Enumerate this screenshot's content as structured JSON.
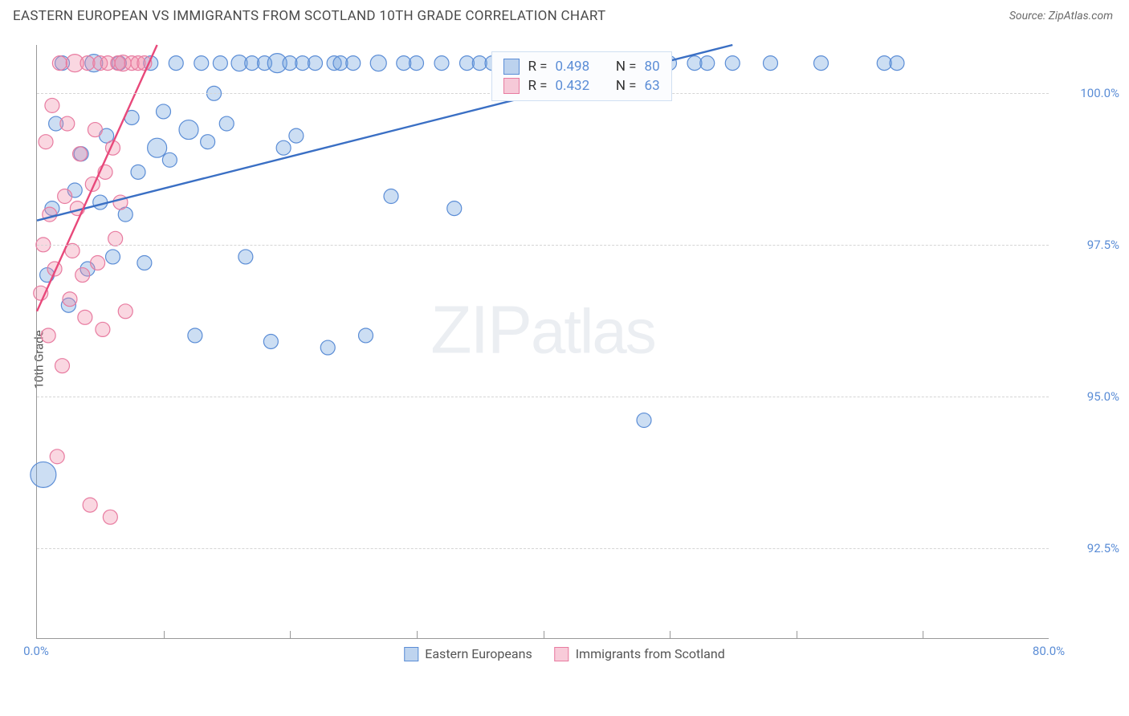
{
  "header": {
    "title": "EASTERN EUROPEAN VS IMMIGRANTS FROM SCOTLAND 10TH GRADE CORRELATION CHART",
    "source": "Source: ZipAtlas.com"
  },
  "chart": {
    "type": "scatter",
    "ylabel": "10th Grade",
    "watermark_zip": "ZIP",
    "watermark_atlas": "atlas",
    "xlim": [
      0,
      80
    ],
    "ylim": [
      91.0,
      100.8
    ],
    "xticks": [
      0,
      80
    ],
    "xtick_labels": [
      "0.0%",
      "80.0%"
    ],
    "x_minor_ticks": [
      10,
      20,
      30,
      40,
      50,
      60,
      70
    ],
    "yticks": [
      92.5,
      95.0,
      97.5,
      100.0
    ],
    "ytick_labels": [
      "92.5%",
      "95.0%",
      "97.5%",
      "100.0%"
    ],
    "grid_color": "#d5d5d5",
    "axis_color": "#999999",
    "background_color": "#ffffff",
    "series": [
      {
        "name": "Eastern Europeans",
        "marker_fill": "rgba(110,160,220,0.35)",
        "marker_stroke": "#5b8dd6",
        "line_color": "#3a6fc4",
        "radius": 9,
        "trend": {
          "x1": 0,
          "y1": 97.9,
          "x2": 55,
          "y2": 100.8
        },
        "points": [
          [
            0.5,
            93.7,
            16
          ],
          [
            0.8,
            97.0,
            9
          ],
          [
            1.2,
            98.1,
            9
          ],
          [
            1.5,
            99.5,
            9
          ],
          [
            2.0,
            100.5,
            9
          ],
          [
            2.5,
            96.5,
            9
          ],
          [
            3.0,
            98.4,
            9
          ],
          [
            3.5,
            99.0,
            9
          ],
          [
            4.0,
            97.1,
            9
          ],
          [
            4.5,
            100.5,
            11
          ],
          [
            5.0,
            98.2,
            9
          ],
          [
            5.5,
            99.3,
            9
          ],
          [
            6.0,
            97.3,
            9
          ],
          [
            6.5,
            100.5,
            9
          ],
          [
            7.0,
            98.0,
            9
          ],
          [
            7.5,
            99.6,
            9
          ],
          [
            8.0,
            98.7,
            9
          ],
          [
            8.5,
            97.2,
            9
          ],
          [
            9.0,
            100.5,
            9
          ],
          [
            9.5,
            99.1,
            12
          ],
          [
            10.0,
            99.7,
            9
          ],
          [
            10.5,
            98.9,
            9
          ],
          [
            11.0,
            100.5,
            9
          ],
          [
            12.0,
            99.4,
            12
          ],
          [
            12.5,
            96.0,
            9
          ],
          [
            13.0,
            100.5,
            9
          ],
          [
            13.5,
            99.2,
            9
          ],
          [
            14.0,
            100.0,
            9
          ],
          [
            14.5,
            100.5,
            9
          ],
          [
            15.0,
            99.5,
            9
          ],
          [
            16.0,
            100.5,
            10
          ],
          [
            16.5,
            97.3,
            9
          ],
          [
            17.0,
            100.5,
            9
          ],
          [
            18.0,
            100.5,
            9
          ],
          [
            18.5,
            95.9,
            9
          ],
          [
            19.0,
            100.5,
            12
          ],
          [
            19.5,
            99.1,
            9
          ],
          [
            20.0,
            100.5,
            9
          ],
          [
            20.5,
            99.3,
            9
          ],
          [
            21.0,
            100.5,
            9
          ],
          [
            22.0,
            100.5,
            9
          ],
          [
            23.0,
            95.8,
            9
          ],
          [
            23.5,
            100.5,
            9
          ],
          [
            24.0,
            100.5,
            9
          ],
          [
            25.0,
            100.5,
            9
          ],
          [
            26.0,
            96.0,
            9
          ],
          [
            27.0,
            100.5,
            10
          ],
          [
            28.0,
            98.3,
            9
          ],
          [
            29.0,
            100.5,
            9
          ],
          [
            30.0,
            100.5,
            9
          ],
          [
            32.0,
            100.5,
            9
          ],
          [
            33.0,
            98.1,
            9
          ],
          [
            34.0,
            100.5,
            9
          ],
          [
            35.0,
            100.5,
            9
          ],
          [
            36.0,
            100.5,
            9
          ],
          [
            38.0,
            100.5,
            9
          ],
          [
            40.0,
            100.5,
            9
          ],
          [
            42.0,
            100.5,
            9
          ],
          [
            44.0,
            100.5,
            9
          ],
          [
            46.0,
            100.5,
            9
          ],
          [
            48.0,
            94.6,
            9
          ],
          [
            50.0,
            100.5,
            9
          ],
          [
            52.0,
            100.5,
            9
          ],
          [
            53.0,
            100.5,
            9
          ],
          [
            55.0,
            100.5,
            9
          ],
          [
            58.0,
            100.5,
            9
          ],
          [
            62.0,
            100.5,
            9
          ],
          [
            67.0,
            100.5,
            9
          ],
          [
            68.0,
            100.5,
            9
          ]
        ]
      },
      {
        "name": "Immigrants from Scotland",
        "marker_fill": "rgba(240,140,170,0.35)",
        "marker_stroke": "#e87ba0",
        "line_color": "#e8487a",
        "radius": 9,
        "trend": {
          "x1": 0,
          "y1": 96.4,
          "x2": 9.5,
          "y2": 100.8
        },
        "points": [
          [
            0.3,
            96.7,
            9
          ],
          [
            0.5,
            97.5,
            9
          ],
          [
            0.7,
            99.2,
            9
          ],
          [
            0.9,
            96.0,
            9
          ],
          [
            1.0,
            98.0,
            9
          ],
          [
            1.2,
            99.8,
            9
          ],
          [
            1.4,
            97.1,
            9
          ],
          [
            1.6,
            94.0,
            9
          ],
          [
            1.8,
            100.5,
            9
          ],
          [
            2.0,
            95.5,
            9
          ],
          [
            2.2,
            98.3,
            9
          ],
          [
            2.4,
            99.5,
            9
          ],
          [
            2.6,
            96.6,
            9
          ],
          [
            2.8,
            97.4,
            9
          ],
          [
            3.0,
            100.5,
            11
          ],
          [
            3.2,
            98.1,
            9
          ],
          [
            3.4,
            99.0,
            9
          ],
          [
            3.6,
            97.0,
            9
          ],
          [
            3.8,
            96.3,
            9
          ],
          [
            4.0,
            100.5,
            9
          ],
          [
            4.2,
            93.2,
            9
          ],
          [
            4.4,
            98.5,
            9
          ],
          [
            4.6,
            99.4,
            9
          ],
          [
            4.8,
            97.2,
            9
          ],
          [
            5.0,
            100.5,
            9
          ],
          [
            5.2,
            96.1,
            9
          ],
          [
            5.4,
            98.7,
            9
          ],
          [
            5.6,
            100.5,
            9
          ],
          [
            5.8,
            93.0,
            9
          ],
          [
            6.0,
            99.1,
            9
          ],
          [
            6.2,
            97.6,
            9
          ],
          [
            6.4,
            100.5,
            9
          ],
          [
            6.6,
            98.2,
            9
          ],
          [
            6.8,
            100.5,
            10
          ],
          [
            7.0,
            96.4,
            9
          ],
          [
            7.5,
            100.5,
            9
          ],
          [
            8.0,
            100.5,
            9
          ],
          [
            8.5,
            100.5,
            9
          ]
        ]
      }
    ],
    "stats": [
      {
        "swatch_fill": "rgba(110,160,220,0.45)",
        "swatch_border": "#5b8dd6",
        "r_label": "R = ",
        "r_value": "0.498",
        "n_label": "N = ",
        "n_value": "80"
      },
      {
        "swatch_fill": "rgba(240,140,170,0.45)",
        "swatch_border": "#e87ba0",
        "r_label": "R = ",
        "r_value": "0.432",
        "n_label": "N = ",
        "n_value": "63"
      }
    ],
    "legend": [
      {
        "label": "Eastern Europeans",
        "fill": "rgba(110,160,220,0.45)",
        "border": "#5b8dd6"
      },
      {
        "label": "Immigrants from Scotland",
        "fill": "rgba(240,140,170,0.45)",
        "border": "#e87ba0"
      }
    ]
  }
}
